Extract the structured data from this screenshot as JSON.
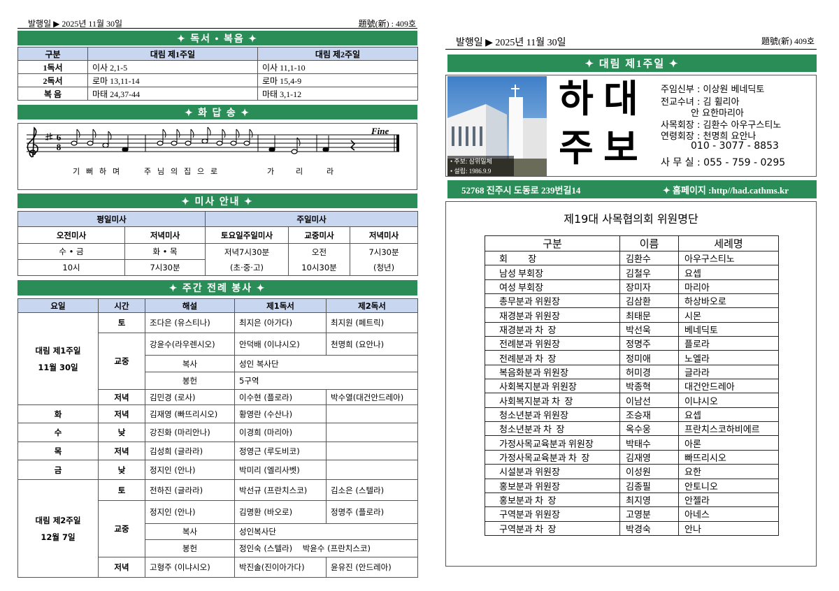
{
  "left": {
    "header": {
      "date": "발행일 ▶ 2025년 11월 30일",
      "issue": "題號(新) : 409호"
    },
    "readings": {
      "title": "✦ 독서 • 복음 ✦",
      "header": [
        "구분",
        "대림 제1주일",
        "대림 제2주일"
      ],
      "rows": [
        [
          "1독서",
          "이사 2,1-5",
          "이사 11,1-10"
        ],
        [
          "2독서",
          "로마 13,11-14",
          "로마 15,4-9"
        ],
        [
          "복 음",
          "마태 24,37-44",
          "마태 3,1-12"
        ]
      ]
    },
    "psalm": {
      "title": "✦ 화 답 송 ✦",
      "time_signature": [
        "6",
        "8"
      ],
      "ending": "Fine",
      "lyrics": [
        "기",
        "뻐",
        "하",
        "며",
        "주",
        "님",
        "의",
        "집",
        "으",
        "로",
        "가",
        "리",
        "라"
      ]
    },
    "mass": {
      "title": "✦ 미사 안내 ✦",
      "groups": [
        "평일미사",
        "주일미사"
      ],
      "header": [
        "오전미사",
        "저녁미사",
        "토요일주일미사",
        "교중미사",
        "저녁미사"
      ],
      "weekday_rows": [
        [
          "수 • 금",
          "화 • 목"
        ],
        [
          "10시",
          "7시30분"
        ]
      ],
      "sunday": [
        [
          "저녁7시30분",
          "(초·중·고)"
        ],
        [
          "오전",
          "10시30분"
        ],
        [
          "7시30분",
          "(청년)"
        ]
      ]
    },
    "service": {
      "title": "✦ 주간 전례 봉사 ✦",
      "header": [
        "요일",
        "시간",
        "해설",
        "제1독서",
        "제2독서"
      ],
      "sunday1": {
        "day": [
          "대림 제1주일",
          "11월 30일"
        ],
        "sat": {
          "time": "토",
          "cells": [
            "조다은 (유스티나)",
            "최지은 (아가다)",
            "최지원 (페트릭)"
          ]
        },
        "main": {
          "time": "교중",
          "cells": [
            "강윤수(라우렌시오)",
            "안덕배 (이냐시오)",
            "천명희 (요안나)"
          ],
          "altar_label": "복사",
          "altar": "성인 복사단",
          "offering_label": "봉헌",
          "offering": "5구역"
        },
        "eve": {
          "time": "저녁",
          "cells": [
            "김민경 (로사)",
            "이수현 (플로라)",
            "박수열(대건안드레아)"
          ]
        }
      },
      "weekdays": [
        {
          "day": "화",
          "time": "저녁",
          "cells": [
            "김재영 (빠뜨리시오)",
            "황영란 (수산나)"
          ]
        },
        {
          "day": "수",
          "time": "낮",
          "cells": [
            "강진화 (마리안나)",
            "이경희 (마리아)"
          ]
        },
        {
          "day": "목",
          "time": "저녁",
          "cells": [
            "김성희 (글라라)",
            "정영근 (루도비코)"
          ]
        },
        {
          "day": "금",
          "time": "낮",
          "cells": [
            "정지인 (안나)",
            "박미리 (엘리사벳)"
          ]
        }
      ],
      "sunday2": {
        "day": [
          "대림 제2주일",
          "12월 7일"
        ],
        "sat": {
          "time": "토",
          "cells": [
            "전하진 (글라라)",
            "박선규 (프란치스코)",
            "김소은 (스텔라)"
          ]
        },
        "main": {
          "time": "교중",
          "cells": [
            "정지인 (안나)",
            "김명환 (바오로)",
            "정명주 (플로라)"
          ],
          "altar_label": "복사",
          "altar": "성인복사단",
          "offering_label": "봉헌",
          "offering": "정인숙 (스텔라)    박윤수 (프란치스코)"
        },
        "eve": {
          "time": "저녁",
          "cells": [
            "고형주 (이냐시오)",
            "박진솔(진이아가다)",
            "윤유진 (안드레아)"
          ]
        }
      }
    }
  },
  "right": {
    "header": {
      "date": "발행일 ▶ 2025년 11월 30일",
      "issue": "題號(新) 409호"
    },
    "banner": "✦ 대림 제1주일 ✦",
    "photo_notes": [
      "• 주보: 삼위일체",
      "• 설립: 1986.9.9"
    ],
    "masthead": [
      "하",
      "대",
      "주",
      "보"
    ],
    "staff": [
      "주임신부 : 이상원 베네딕토",
      "전교수녀 : 김 휠리아",
      "안 요한마리아",
      "사목회장 : 김환수 아우구스티노",
      "연령회장 : 천명희 요안나",
      "010 - 3077 - 8853",
      "사 무 실 : 055 - 759 - 0295"
    ],
    "address": "52768  진주시 도동로 239번길14",
    "homepage": "✦ 홈페이지 :http//had.cathms.kr",
    "committee": {
      "title": "제19대 사목협의회 위원명단",
      "header": [
        "구분",
        "이름",
        "세례명"
      ],
      "rows": [
        [
          "회         장",
          "김환수",
          "아우구스티노"
        ],
        [
          "남성 부회장",
          "김철우",
          "요셉"
        ],
        [
          "여성 부회장",
          "장미자",
          "마리아"
        ],
        [
          "총무분과 위원장",
          "김삼환",
          "하상바오로"
        ],
        [
          "재경분과 위원장",
          "최태문",
          "시몬"
        ],
        [
          "재경분과 차  장",
          "박선욱",
          "베네딕토"
        ],
        [
          "전례분과 위원장",
          "정명주",
          "플로라"
        ],
        [
          "전례분과 차  장",
          "정미애",
          "노엘라"
        ],
        [
          "복음화분과 위원장",
          "허미경",
          "글라라"
        ],
        [
          "사회복지분과 위원장",
          "박종혁",
          "대건안드레아"
        ],
        [
          "사회복지분과 차  장",
          "이남선",
          "이냐시오"
        ],
        [
          "청소년분과 위원장",
          "조승재",
          "요셉"
        ],
        [
          "청소년분과 차  장",
          "옥수웅",
          "프란치스코하비에르"
        ],
        [
          "가정사목교육분과 위원장",
          "박태수",
          "아론"
        ],
        [
          "가정사목교육분과 차  장",
          "김재영",
          "빠뜨리시오"
        ],
        [
          "시설분과 위원장",
          "이성원",
          "요한"
        ],
        [
          "홍보분과 위원장",
          "김종필",
          "안토니오"
        ],
        [
          "홍보분과 차  장",
          "최지영",
          "안젤라"
        ],
        [
          "구역분과 위원장",
          "고영분",
          "아네스"
        ],
        [
          "구역분과 차  장",
          "박경숙",
          "안나"
        ]
      ]
    }
  }
}
